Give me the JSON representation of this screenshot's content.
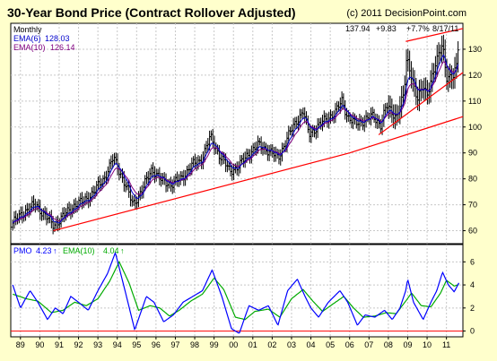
{
  "header": {
    "title": "30-Year Bond Price (Contract Rollover Adjusted)",
    "copyright": "(c) 2011 DecisionPoint.com"
  },
  "chart_data": [
    {
      "type": "candlestick",
      "frequency_label": "Monthly",
      "last_readout": {
        "price": "137.94",
        "change": "+9.83",
        "pct": "+7.7%",
        "date": "8/17/11"
      },
      "legend": [
        {
          "name": "EMA(6)",
          "value": "128.03",
          "color": "#0000cc"
        },
        {
          "name": "EMA(10)",
          "value": "126.14",
          "color": "#800080"
        }
      ],
      "ylim": [
        55,
        140
      ],
      "y_ticks": [
        60,
        70,
        80,
        90,
        100,
        110,
        120,
        130
      ],
      "x_ticks": [
        "89",
        "90",
        "91",
        "92",
        "93",
        "94",
        "95",
        "96",
        "97",
        "98",
        "99",
        "00",
        "01",
        "02",
        "03",
        "04",
        "05",
        "06",
        "07",
        "08",
        "09",
        "10",
        "11"
      ],
      "xlim": [
        1988.5,
        2011.85
      ],
      "price_anchors": [
        [
          1988.6,
          63
        ],
        [
          1989.3,
          68
        ],
        [
          1989.8,
          70
        ],
        [
          1990.7,
          62
        ],
        [
          1991.0,
          64
        ],
        [
          1991.8,
          70
        ],
        [
          1992.2,
          71
        ],
        [
          1992.8,
          75
        ],
        [
          1993.3,
          80
        ],
        [
          1993.8,
          88
        ],
        [
          1994.3,
          80
        ],
        [
          1994.8,
          70
        ],
        [
          1995.3,
          76
        ],
        [
          1995.8,
          84
        ],
        [
          1996.3,
          79
        ],
        [
          1996.8,
          78
        ],
        [
          1997.3,
          80
        ],
        [
          1997.8,
          85
        ],
        [
          1998.3,
          87
        ],
        [
          1998.8,
          96
        ],
        [
          1999.3,
          89
        ],
        [
          1999.8,
          83
        ],
        [
          2000.3,
          85
        ],
        [
          2000.8,
          90
        ],
        [
          2001.3,
          93
        ],
        [
          2001.8,
          91
        ],
        [
          2002.3,
          88
        ],
        [
          2002.8,
          96
        ],
        [
          2003.3,
          103
        ],
        [
          2003.6,
          106
        ],
        [
          2003.9,
          97
        ],
        [
          2004.3,
          100
        ],
        [
          2004.8,
          103
        ],
        [
          2005.3,
          106
        ],
        [
          2005.6,
          110
        ],
        [
          2005.9,
          104
        ],
        [
          2006.3,
          101
        ],
        [
          2006.8,
          103
        ],
        [
          2007.2,
          104
        ],
        [
          2007.6,
          101
        ],
        [
          2007.9,
          108
        ],
        [
          2008.4,
          104
        ],
        [
          2008.8,
          112
        ],
        [
          2008.95,
          127
        ],
        [
          2009.2,
          120
        ],
        [
          2009.5,
          110
        ],
        [
          2009.8,
          116
        ],
        [
          2010.0,
          113
        ],
        [
          2010.3,
          120
        ],
        [
          2010.6,
          128
        ],
        [
          2010.8,
          133
        ],
        [
          2011.0,
          119
        ],
        [
          2011.3,
          118
        ],
        [
          2011.55,
          125
        ],
        [
          2011.65,
          138
        ]
      ],
      "trendlines": [
        {
          "from": [
            1990.7,
            60
          ],
          "to": [
            2006.0,
            90
          ],
          "color": "#ff0000"
        },
        {
          "from": [
            2006.0,
            90
          ],
          "to": [
            2011.85,
            104
          ],
          "color": "#ff0000"
        },
        {
          "from": [
            2007.5,
            97
          ],
          "to": [
            2011.85,
            121
          ],
          "color": "#ff0000"
        },
        {
          "from": [
            2008.9,
            133
          ],
          "to": [
            2011.85,
            138
          ],
          "color": "#ff0000"
        }
      ]
    },
    {
      "type": "line",
      "legend": [
        {
          "name": "PMO",
          "value": "4.23",
          "color": "#0000ff"
        },
        {
          "name": "EMA(10)",
          "value": "4.04",
          "color": "#00aa00"
        }
      ],
      "ylim": [
        -0.5,
        7.5
      ],
      "y_ticks": [
        0,
        2,
        4,
        6
      ],
      "pmo_anchors": [
        [
          1988.6,
          4
        ],
        [
          1989.0,
          2
        ],
        [
          1989.5,
          3.5
        ],
        [
          1989.9,
          2.5
        ],
        [
          1990.4,
          1
        ],
        [
          1990.8,
          2
        ],
        [
          1991.2,
          1.5
        ],
        [
          1991.6,
          3
        ],
        [
          1992.0,
          2.5
        ],
        [
          1992.5,
          1.8
        ],
        [
          1993.0,
          3.5
        ],
        [
          1993.5,
          5
        ],
        [
          1993.9,
          6.8
        ],
        [
          1994.4,
          3.5
        ],
        [
          1994.9,
          0.1
        ],
        [
          1995.5,
          3
        ],
        [
          1995.9,
          2.5
        ],
        [
          1996.4,
          0.8
        ],
        [
          1996.9,
          1.4
        ],
        [
          1997.4,
          2.5
        ],
        [
          1997.9,
          3
        ],
        [
          1998.4,
          3.5
        ],
        [
          1998.9,
          5.3
        ],
        [
          1999.4,
          3
        ],
        [
          1999.9,
          0.2
        ],
        [
          2000.3,
          -0.2
        ],
        [
          2000.8,
          2.2
        ],
        [
          2001.3,
          1.8
        ],
        [
          2001.8,
          2.2
        ],
        [
          2002.3,
          0.5
        ],
        [
          2002.8,
          3.5
        ],
        [
          2003.3,
          4.5
        ],
        [
          2003.7,
          3
        ],
        [
          2004.0,
          2
        ],
        [
          2004.4,
          1.2
        ],
        [
          2004.9,
          2.5
        ],
        [
          2005.5,
          3.5
        ],
        [
          2005.9,
          2.5
        ],
        [
          2006.4,
          0.5
        ],
        [
          2006.8,
          1.4
        ],
        [
          2007.3,
          1.2
        ],
        [
          2007.8,
          1.8
        ],
        [
          2008.2,
          1
        ],
        [
          2008.6,
          2
        ],
        [
          2008.9,
          3.5
        ],
        [
          2009.0,
          4.5
        ],
        [
          2009.3,
          2.5
        ],
        [
          2009.8,
          1
        ],
        [
          2010.2,
          2.5
        ],
        [
          2010.5,
          3.5
        ],
        [
          2010.8,
          5.1
        ],
        [
          2011.1,
          4
        ],
        [
          2011.4,
          3.4
        ],
        [
          2011.65,
          4.2
        ]
      ],
      "ema_anchors": [
        [
          1988.6,
          3.2
        ],
        [
          1989.3,
          2.8
        ],
        [
          1989.9,
          2.6
        ],
        [
          1990.6,
          1.6
        ],
        [
          1991.2,
          1.8
        ],
        [
          1991.8,
          2.5
        ],
        [
          1992.4,
          2.2
        ],
        [
          1993.0,
          2.8
        ],
        [
          1993.6,
          4.3
        ],
        [
          1994.1,
          6
        ],
        [
          1994.6,
          4.2
        ],
        [
          1995.1,
          1.8
        ],
        [
          1995.7,
          2.2
        ],
        [
          1996.2,
          2
        ],
        [
          1996.7,
          1.3
        ],
        [
          1997.2,
          1.8
        ],
        [
          1997.8,
          2.6
        ],
        [
          1998.4,
          3.2
        ],
        [
          1999.0,
          4.6
        ],
        [
          1999.5,
          3.6
        ],
        [
          2000.1,
          1.2
        ],
        [
          2000.6,
          1
        ],
        [
          2001.1,
          1.7
        ],
        [
          2001.8,
          1.9
        ],
        [
          2002.4,
          1.2
        ],
        [
          2003.0,
          2.8
        ],
        [
          2003.6,
          3.6
        ],
        [
          2004.1,
          2.6
        ],
        [
          2004.6,
          1.7
        ],
        [
          2005.1,
          2.3
        ],
        [
          2005.7,
          3
        ],
        [
          2006.2,
          2
        ],
        [
          2006.7,
          1.2
        ],
        [
          2007.3,
          1.3
        ],
        [
          2007.9,
          1.6
        ],
        [
          2008.4,
          1.5
        ],
        [
          2008.9,
          2.6
        ],
        [
          2009.2,
          3.3
        ],
        [
          2009.7,
          2.2
        ],
        [
          2010.2,
          2.1
        ],
        [
          2010.7,
          3.3
        ],
        [
          2011.0,
          4.4
        ],
        [
          2011.4,
          3.9
        ],
        [
          2011.65,
          4.04
        ]
      ]
    }
  ]
}
